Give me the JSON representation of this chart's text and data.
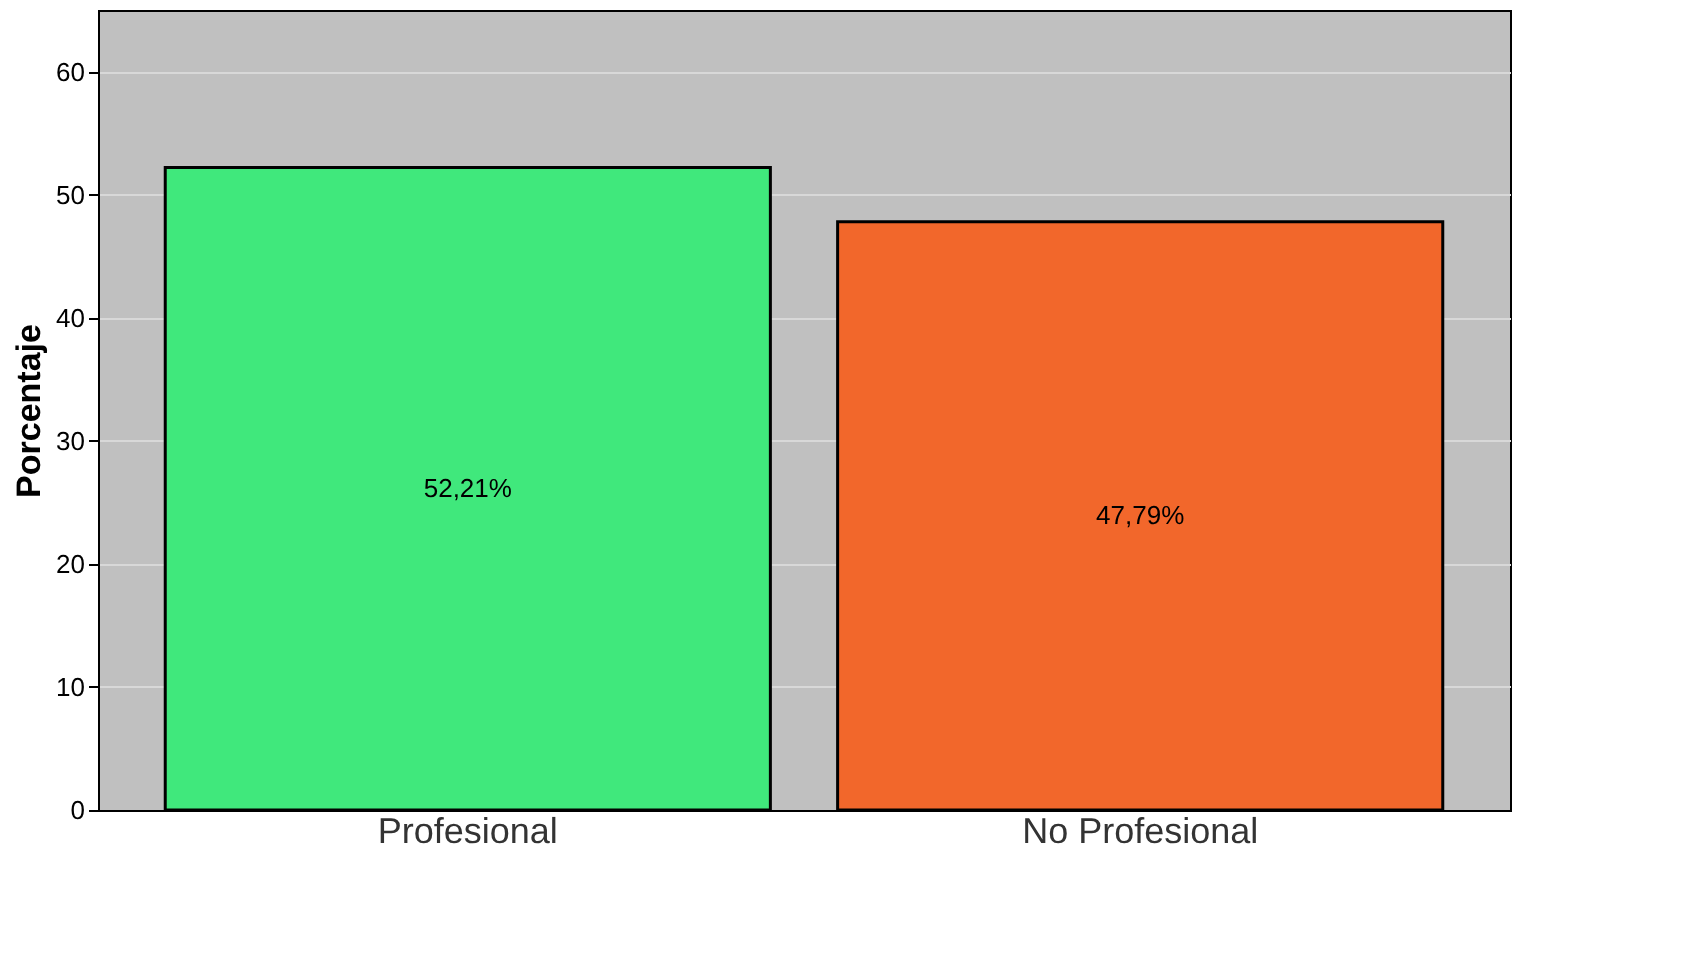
{
  "chart_data": {
    "type": "bar",
    "ylabel": "Porcentaje",
    "categories": [
      "Profesional",
      "No Profesional"
    ],
    "values": [
      52.21,
      47.79
    ],
    "colors": [
      "#40e87c",
      "#f2672b"
    ],
    "value_labels": [
      "52,21%",
      "47,79%"
    ],
    "ylim": [
      0,
      65
    ],
    "yticks": [
      0,
      10,
      20,
      30,
      40,
      50,
      60
    ],
    "grid": "y"
  }
}
